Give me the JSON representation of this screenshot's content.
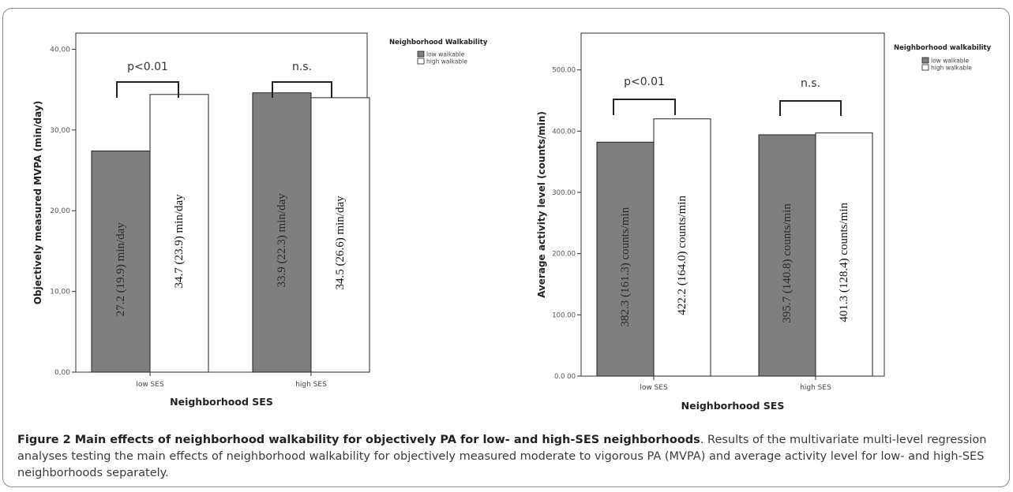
{
  "colors": {
    "low": "#7f7f7f",
    "high": "#ffffff",
    "axis": "#333333",
    "frame": "#8a8a8a"
  },
  "caption": {
    "bold": "Figure 2 Main effects of neighborhood walkability for objectively PA for low- and high-SES neighborhoods",
    "text": ". Results of the multivariate multi-level regression analyses testing the main effects of neighborhood walkability for objectively measured moderate to vigorous PA (MVPA) and average activity level for low- and high-SES neighborhoods separately."
  },
  "chart_data": [
    {
      "type": "bar",
      "xlabel": "Neighborhood SES",
      "ylabel": "Objectively measured MVPA (min/day)",
      "ylim": [
        0,
        42
      ],
      "yticks": [
        0,
        10,
        20,
        30,
        40
      ],
      "ytick_labels": [
        "0,00",
        "10,00",
        "20,00",
        "30,00",
        "40,00"
      ],
      "categories": [
        "low SES",
        "high SES"
      ],
      "legend": {
        "title": "Neighborhood Walkability",
        "position": "right"
      },
      "series": [
        {
          "name": "low walkable",
          "values": [
            27.2,
            33.9
          ],
          "bar_heights": [
            27.4,
            34.6
          ],
          "labels": [
            "27.2 (19.9) min/day",
            "33.9 (22.3) min/day"
          ]
        },
        {
          "name": "high walkable",
          "values": [
            34.7,
            34.5
          ],
          "bar_heights": [
            34.4,
            34.0
          ],
          "labels": [
            "34.7 (23.9) min/day",
            "34.5 (26.6) min/day"
          ]
        }
      ],
      "annotations": [
        "p<0.01",
        "n.s."
      ]
    },
    {
      "type": "bar",
      "xlabel": "Neighborhood SES",
      "ylabel": "Average activity level (counts/min)",
      "ylim": [
        0,
        560
      ],
      "yticks": [
        0,
        100,
        200,
        300,
        400,
        500
      ],
      "ytick_labels": [
        "0.0 00",
        "100.00",
        "200.00",
        "300.00",
        "400.00",
        "500.00"
      ],
      "categories": [
        "low SES",
        "high SES"
      ],
      "legend": {
        "title": "Neighborhood walkability",
        "position": "right"
      },
      "series": [
        {
          "name": "low walkable",
          "values": [
            382.3,
            395.7
          ],
          "bar_heights": [
            382,
            394
          ],
          "labels": [
            "382.3 (161.3) counts/min",
            "395.7 (140.8) counts/min"
          ]
        },
        {
          "name": "high walkable",
          "values": [
            422.2,
            401.3
          ],
          "bar_heights": [
            420,
            397
          ],
          "labels": [
            "422.2 (164.0) counts/min",
            "401.3 (128.4) counts/min"
          ]
        }
      ],
      "annotations": [
        "p<0.01",
        "n.s."
      ]
    }
  ]
}
